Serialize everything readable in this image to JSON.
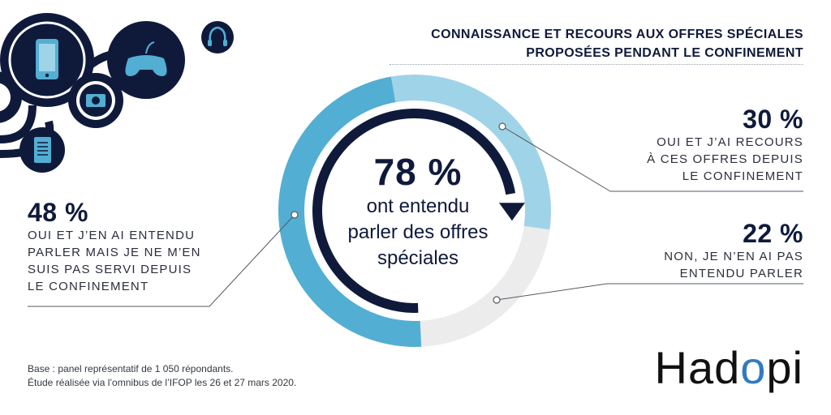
{
  "header": {
    "title_line1": "CONNAISSANCE ET RECOURS AUX OFFRES SPÉCIALES",
    "title_line2": "PROPOSÉES PENDANT LE CONFINEMENT"
  },
  "center": {
    "pct": "78 %",
    "label_line1": "ont entendu",
    "label_line2": "parler des offres",
    "label_line3": "spéciales"
  },
  "stats": {
    "s30": {
      "pct": "30 %",
      "line1": "OUI ET J’AI RECOURS",
      "line2": "À CES OFFRES DEPUIS",
      "line3": "LE CONFINEMENT"
    },
    "s22": {
      "pct": "22 %",
      "line1": "NON, JE N’EN AI PAS",
      "line2": "ENTENDU PARLER"
    },
    "s48": {
      "pct": "48 %",
      "line1": "OUI ET J’EN AI ENTENDU",
      "line2": "PARLER MAIS JE NE M’EN",
      "line3": "SUIS PAS SERVI DEPUIS",
      "line4": "LE CONFINEMENT"
    }
  },
  "footnote": {
    "line1": "Base : panel représentatif de 1 050 répondants.",
    "line2": "Étude réalisée via l’omnibus de l’IFOP les 26 et 27 mars 2020."
  },
  "logo": "Hadopi",
  "colors": {
    "navy": "#0f1a3b",
    "blue_48": "#53aed3",
    "light_blue_30": "#9fd3e8",
    "grey_22": "#ececec",
    "line": "#555a63"
  },
  "icons": [
    "smartphone-icon",
    "gamepad-icon",
    "camera-icon",
    "headphones-icon",
    "ebook-reader-icon"
  ],
  "chart_data": {
    "type": "pie",
    "variant": "donut",
    "categories": [
      "OUI ET J’AI RECOURS À CES OFFRES DEPUIS LE CONFINEMENT",
      "NON, JE N’EN AI PAS ENTENDU PARLER",
      "OUI ET J’EN AI ENTENDU PARLER MAIS JE NE M’EN SUIS PAS SERVI DEPUIS LE CONFINEMENT"
    ],
    "values": [
      30,
      22,
      48
    ],
    "unit": "%",
    "colors": [
      "#9fd3e8",
      "#ececec",
      "#53aed3"
    ],
    "title": "CONNAISSANCE ET RECOURS AUX OFFRES SPÉCIALES PROPOSÉES PENDANT LE CONFINEMENT",
    "center_value": 78
  }
}
